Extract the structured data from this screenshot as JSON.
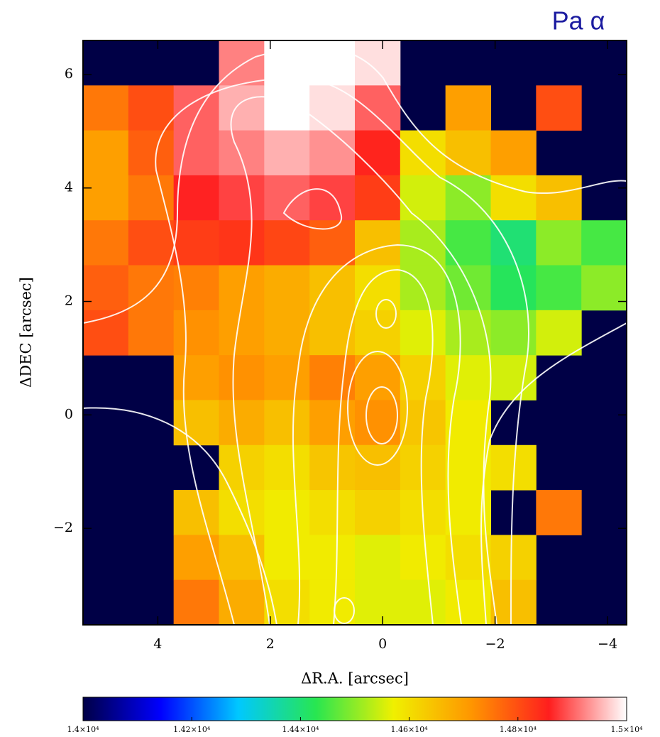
{
  "chart_data": {
    "type": "heatmap",
    "title": "Pa α",
    "xlabel": "ΔR.A. [arcsec]",
    "ylabel": "ΔDEC [arcsec]",
    "xlim": [
      5.33,
      -4.34
    ],
    "ylim": [
      -3.7,
      6.6
    ],
    "xticks": [
      4,
      2,
      0,
      {
        "value": -2,
        "label": "−2"
      },
      {
        "value": -4,
        "label": "−4"
      }
    ],
    "yticks": [
      6,
      4,
      2,
      0,
      {
        "value": -2,
        "label": "−2"
      }
    ],
    "masked_color": "#000046",
    "colorscale": [
      "#000046",
      "#0000ff",
      "#00c8ff",
      "#28e650",
      "#f0f000",
      "#ff9600",
      "#ff1e1e",
      "#ffffff"
    ],
    "zlim": [
      14000,
      15000
    ],
    "zticks": [
      {
        "value": 14000,
        "label": "1.4×10⁴"
      },
      {
        "value": 14200,
        "label": "1.42×10⁴"
      },
      {
        "value": 14400,
        "label": "1.44×10⁴"
      },
      {
        "value": 14600,
        "label": "1.46×10⁴"
      },
      {
        "value": 14800,
        "label": "1.48×10⁴"
      },
      {
        "value": 15000,
        "label": "1.5×10⁴"
      }
    ],
    "z": [
      [
        null,
        null,
        null,
        14920,
        15000,
        15000,
        14980,
        null,
        null,
        null,
        null,
        null
      ],
      [
        14750,
        14800,
        14900,
        14950,
        15000,
        14980,
        14900,
        null,
        14700,
        null,
        14800,
        null
      ],
      [
        14700,
        14780,
        14900,
        14920,
        14950,
        14930,
        14850,
        14600,
        14650,
        14700,
        null,
        null
      ],
      [
        14700,
        14750,
        14860,
        14880,
        14900,
        14880,
        14820,
        14550,
        14500,
        14600,
        14650,
        null
      ],
      [
        14750,
        14800,
        14820,
        14830,
        14810,
        14780,
        14650,
        14520,
        14450,
        14400,
        14500,
        14450
      ],
      [
        14780,
        14750,
        14740,
        14700,
        14680,
        14650,
        14600,
        14520,
        14480,
        14420,
        14450,
        14500
      ],
      [
        14800,
        14750,
        14720,
        14700,
        14680,
        14650,
        14620,
        14560,
        14520,
        14500,
        14550,
        null
      ],
      [
        null,
        null,
        14700,
        14720,
        14700,
        14740,
        14700,
        14620,
        14560,
        14550,
        null,
        null
      ],
      [
        null,
        null,
        14650,
        14680,
        14650,
        14700,
        14720,
        14640,
        14580,
        null,
        null,
        null
      ],
      [
        null,
        null,
        null,
        14620,
        14600,
        14640,
        14650,
        14620,
        14580,
        14600,
        null,
        null
      ],
      [
        null,
        null,
        14650,
        14600,
        14580,
        14600,
        14620,
        14600,
        14580,
        null,
        14750,
        null
      ],
      [
        null,
        null,
        14700,
        14650,
        14580,
        14580,
        14560,
        14580,
        14600,
        14620,
        null,
        null
      ],
      [
        null,
        null,
        14750,
        14680,
        14600,
        14580,
        14560,
        14560,
        14580,
        14650,
        null,
        null
      ]
    ]
  }
}
